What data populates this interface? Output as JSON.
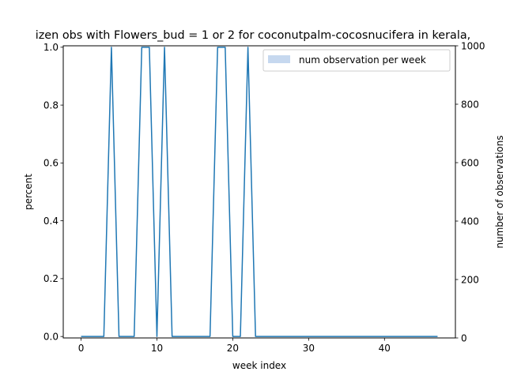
{
  "chart_data": {
    "type": "line",
    "title": "izen obs with Flowers_bud = 1 or 2 for coconutpalm-cocosnucifera in kerala,",
    "xlabel": "week index",
    "ylabel": "percent",
    "y2label": "number of observations",
    "xlim": [
      -2.35,
      49.35
    ],
    "ylim": [
      -0.005,
      1.005
    ],
    "y2lim": [
      0,
      1000
    ],
    "xticks": [
      0,
      10,
      20,
      30,
      40
    ],
    "yticks": [
      0.0,
      0.2,
      0.4,
      0.6,
      0.8,
      1.0
    ],
    "y2ticks": [
      0,
      200,
      400,
      600,
      800,
      1000
    ],
    "xtick_labels": [
      "0",
      "10",
      "20",
      "30",
      "40"
    ],
    "ytick_labels": [
      "0.0",
      "0.2",
      "0.4",
      "0.6",
      "0.8",
      "1.0"
    ],
    "y2tick_labels": [
      "0",
      "200",
      "400",
      "600",
      "800",
      "1000"
    ],
    "legend": {
      "position": "top-right",
      "entries": [
        "num observation per week"
      ]
    },
    "grid": false,
    "colors": {
      "line": "#1f77b4",
      "bars": "#aec7e8"
    },
    "series": [
      {
        "axis": "left",
        "x": [
          0,
          1,
          2,
          3,
          4,
          5,
          6,
          7,
          8,
          9,
          10,
          11,
          12,
          13,
          14,
          15,
          16,
          17,
          18,
          19,
          20,
          21,
          22,
          23,
          24,
          25,
          26,
          27,
          28,
          29,
          30,
          31,
          32,
          33,
          34,
          35,
          36,
          37,
          38,
          39,
          40,
          41,
          42,
          43,
          44,
          45,
          46,
          47
        ],
        "values": [
          0,
          0,
          0,
          0,
          1,
          0,
          0,
          0,
          1,
          1,
          0,
          1,
          0,
          0,
          0,
          0,
          0,
          0,
          1,
          1,
          0,
          0,
          1,
          0,
          0,
          0,
          0,
          0,
          0,
          0,
          0,
          0,
          0,
          0,
          0,
          0,
          0,
          0,
          0,
          0,
          0,
          0,
          0,
          0,
          0,
          0,
          0,
          0
        ]
      },
      {
        "name": "num observation per week",
        "axis": "right",
        "type": "bar",
        "x": [
          4,
          8,
          9,
          11,
          18,
          19,
          22
        ],
        "values": [
          1,
          1,
          1,
          1,
          1,
          1,
          1
        ]
      }
    ]
  }
}
